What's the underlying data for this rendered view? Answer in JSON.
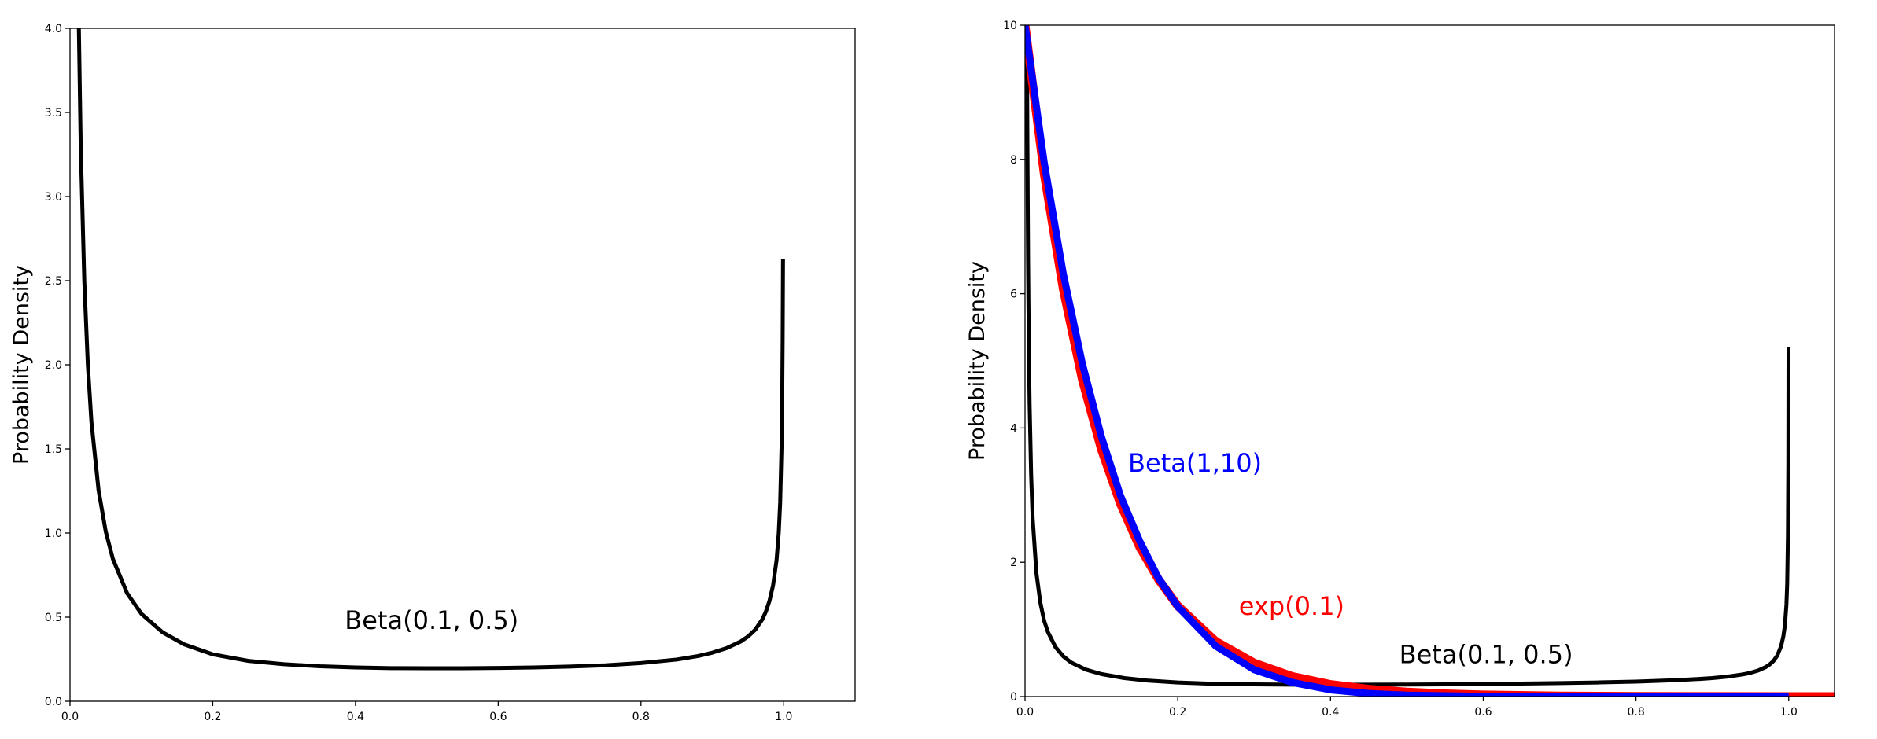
{
  "chart_data": [
    {
      "type": "line",
      "ylabel": "Probability Density",
      "xlim": [
        0,
        1.1
      ],
      "ylim": [
        0,
        4
      ],
      "xticks": [
        "0.0",
        "0.2",
        "0.4",
        "0.6",
        "0.8",
        "1.0"
      ],
      "yticks": [
        "0.0",
        "0.5",
        "1.0",
        "1.5",
        "2.0",
        "2.5",
        "3.0",
        "3.5",
        "4.0"
      ],
      "grid": false,
      "series": [
        {
          "name": "Beta(0.1, 0.5)",
          "color": "#000000",
          "x": [
            0.0124,
            0.015,
            0.02,
            0.025,
            0.03,
            0.04,
            0.05,
            0.06,
            0.08,
            0.1,
            0.13,
            0.16,
            0.2,
            0.25,
            0.3,
            0.35,
            0.4,
            0.45,
            0.5,
            0.55,
            0.6,
            0.65,
            0.7,
            0.75,
            0.8,
            0.85,
            0.88,
            0.9,
            0.92,
            0.94,
            0.95,
            0.96,
            0.97,
            0.975,
            0.98,
            0.985,
            0.99,
            0.993,
            0.995,
            0.997,
            0.998,
            0.9985,
            0.999
          ],
          "y": [
            4.0,
            3.3,
            2.5,
            2.0,
            1.66,
            1.255,
            1.01,
            0.847,
            0.642,
            0.52,
            0.409,
            0.338,
            0.279,
            0.24,
            0.22,
            0.208,
            0.201,
            0.197,
            0.196,
            0.196,
            0.198,
            0.201,
            0.206,
            0.214,
            0.227,
            0.248,
            0.269,
            0.289,
            0.316,
            0.356,
            0.385,
            0.425,
            0.487,
            0.533,
            0.596,
            0.687,
            0.84,
            1.0,
            1.18,
            1.52,
            1.86,
            2.15,
            2.63
          ]
        }
      ],
      "annotations": [
        {
          "text": "Beta(0.1, 0.5)",
          "color": "#000000",
          "x": 0.385,
          "y": 0.43
        }
      ]
    },
    {
      "type": "line",
      "ylabel": "Probability Density",
      "xlim": [
        0,
        1.06
      ],
      "ylim": [
        0,
        10
      ],
      "xticks": [
        "0.0",
        "0.2",
        "0.4",
        "0.6",
        "0.8",
        "1.0"
      ],
      "yticks": [
        "0",
        "2",
        "4",
        "6",
        "8",
        "10"
      ],
      "grid": false,
      "series": [
        {
          "name": "Beta(0.1, 0.5)",
          "color": "#000000",
          "x": [
            0.0025,
            0.003,
            0.004,
            0.005,
            0.006,
            0.008,
            0.01,
            0.015,
            0.02,
            0.025,
            0.03,
            0.04,
            0.05,
            0.06,
            0.08,
            0.1,
            0.13,
            0.16,
            0.2,
            0.25,
            0.3,
            0.35,
            0.4,
            0.45,
            0.5,
            0.55,
            0.6,
            0.65,
            0.7,
            0.75,
            0.8,
            0.85,
            0.88,
            0.9,
            0.92,
            0.94,
            0.95,
            0.96,
            0.97,
            0.975,
            0.98,
            0.985,
            0.99,
            0.993,
            0.995,
            0.997,
            0.998,
            0.999,
            0.9995,
            0.99975
          ],
          "y": [
            9.8,
            8.5,
            6.5,
            5.2,
            4.35,
            3.3,
            2.65,
            1.83,
            1.4,
            1.13,
            0.96,
            0.735,
            0.6,
            0.51,
            0.4,
            0.335,
            0.275,
            0.238,
            0.209,
            0.189,
            0.181,
            0.177,
            0.176,
            0.177,
            0.179,
            0.182,
            0.187,
            0.193,
            0.2,
            0.21,
            0.222,
            0.243,
            0.26,
            0.275,
            0.297,
            0.33,
            0.354,
            0.388,
            0.44,
            0.478,
            0.53,
            0.61,
            0.75,
            0.9,
            1.06,
            1.37,
            1.68,
            2.4,
            3.5,
            5.2
          ]
        },
        {
          "name": "exp(0.1)",
          "color": "#ff0000",
          "x": [
            0.0,
            0.025,
            0.05,
            0.075,
            0.1,
            0.125,
            0.15,
            0.175,
            0.2,
            0.25,
            0.3,
            0.35,
            0.4,
            0.45,
            0.5,
            0.55,
            0.6,
            0.7,
            0.8,
            0.9,
            1.0,
            1.06
          ],
          "y": [
            10.0,
            7.79,
            6.07,
            4.72,
            3.68,
            2.87,
            2.23,
            1.74,
            1.35,
            0.82,
            0.5,
            0.3,
            0.18,
            0.11,
            0.067,
            0.041,
            0.025,
            0.009,
            0.003,
            0.001,
            0.0,
            0.0
          ]
        },
        {
          "name": "Beta(1,10)",
          "color": "#0000ff",
          "x": [
            0.0,
            0.025,
            0.05,
            0.075,
            0.1,
            0.125,
            0.15,
            0.175,
            0.2,
            0.25,
            0.3,
            0.35,
            0.4,
            0.45,
            0.5,
            0.6,
            0.7,
            0.8,
            0.9,
            1.0
          ],
          "y": [
            10.0,
            7.96,
            6.3,
            4.96,
            3.87,
            2.99,
            2.32,
            1.76,
            1.34,
            0.75,
            0.4,
            0.21,
            0.1,
            0.046,
            0.02,
            0.003,
            0.0,
            0.0,
            0.0,
            0.0
          ]
        }
      ],
      "annotations": [
        {
          "text": "Beta(1,10)",
          "color": "#0000ff",
          "x": 0.135,
          "y": 3.35
        },
        {
          "text": "exp(0.1)",
          "color": "#ff0000",
          "x": 0.28,
          "y": 1.22
        },
        {
          "text": "Beta(0.1, 0.5)",
          "color": "#000000",
          "x": 0.49,
          "y": 0.5
        }
      ]
    }
  ]
}
